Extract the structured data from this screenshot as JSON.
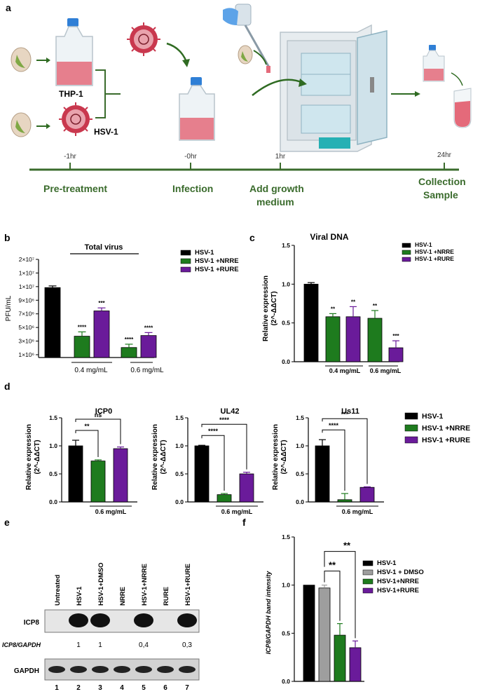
{
  "colors": {
    "hsv": "#000000",
    "nrre": "#1e7b1e",
    "rure": "#6a1b9a",
    "dmso": "#9e9e9e",
    "timeline": "#3a6b2c",
    "medium": "#e46a7a"
  },
  "panel_a": {
    "letter": "a",
    "cell_label": "THP-1",
    "virus_label": "HSV-1",
    "times": [
      "-1hr",
      "-0hr",
      "1hr",
      "24hr"
    ],
    "steps": [
      "Pre-treatment",
      "Infection",
      "Add growth",
      "medium",
      "Collection",
      "Sample"
    ],
    "icons": [
      "pistachio-icon",
      "flask-icon",
      "virus-icon",
      "pipette-icon",
      "incubator-icon",
      "tube-icon"
    ]
  },
  "panel_b": {
    "letter": "b",
    "header": "Total virus",
    "ylabel": "PFU/mL",
    "yticks": [
      "2×10⁷",
      "1×10⁷",
      "1×10⁷",
      "9×10⁶",
      "7×10⁶",
      "5×10⁶",
      "3×10⁶",
      "1×10⁶"
    ],
    "groups": [
      "0.4 mg/mL",
      "0.6 mg/mL"
    ],
    "legend": [
      "HSV-1",
      "HSV-1 +NRRE",
      "HSV-1 +RURE"
    ],
    "stars": [
      "****",
      "***",
      "****",
      "****"
    ]
  },
  "panel_c": {
    "letter": "c",
    "title": "Viral DNA",
    "ylabel1": "Relative expression",
    "ylabel2": "(2^-ΔΔCT)",
    "yticks": [
      "0.0",
      "0.5",
      "1.0",
      "1.5"
    ],
    "groups": [
      "0.4 mg/mL",
      "0.6 mg/mL"
    ],
    "legend": [
      "HSV-1",
      "HSV-1 +NRRE",
      "HSV-1 +RURE"
    ],
    "stars": [
      "**",
      "**",
      "**",
      "***"
    ]
  },
  "panel_d": {
    "letter": "d",
    "ylabel1": "Relative expression",
    "ylabel2": "(2^-ΔΔCT)",
    "yticks": [
      "0.0",
      "0.5",
      "1.0",
      "1.5"
    ],
    "group": "0.6 mg/mL",
    "legend": [
      "HSV-1",
      "HSV-1 +NRRE",
      "HSV-1 +RURE"
    ],
    "sub1": {
      "title": "ICP0",
      "sig_a": "**",
      "sig_b": "ns"
    },
    "sub2": {
      "title": "UL42",
      "sig_a": "****",
      "sig_b": "****"
    },
    "sub3": {
      "title": "Us11",
      "sig_a": "****",
      "sig_b": "***"
    }
  },
  "panel_e": {
    "letter": "e",
    "lane_labels": [
      "Untreated",
      "HSV-1",
      "HSV-1+DMSO",
      "NRRE",
      "HSV-1+NRRE",
      "RURE",
      "HSV-1+RURE"
    ],
    "row_icp8": "ICP8",
    "row_ratio": "ICP8/GAPDH",
    "row_gapdh": "GAPDH",
    "ratios": [
      "1",
      "1",
      "0,4",
      "0,3"
    ],
    "lane_numbers": [
      "1",
      "2",
      "3",
      "4",
      "5",
      "6",
      "7"
    ]
  },
  "panel_f": {
    "letter": "f",
    "ylabel": "ICP8/GAPDH band intensity",
    "yticks": [
      "0.0",
      "0.5",
      "1.0",
      "1.5"
    ],
    "legend": [
      "HSV-1",
      "HSV-1 + DMSO",
      "HSV-1+NRRE",
      "HSV-1+RURE"
    ],
    "stars": [
      "**",
      "**"
    ]
  },
  "chart_data": [
    {
      "panel": "b",
      "type": "bar",
      "ylabel": "PFU/mL",
      "title": "Total virus",
      "categories": [
        "HSV-1",
        "0.4 mg/mL NRRE",
        "0.4 mg/mL RURE",
        "0.6 mg/mL NRRE",
        "0.6 mg/mL RURE"
      ],
      "values": [
        10500000,
        3200000,
        7000000,
        1500000,
        3300000
      ],
      "errors": [
        250000,
        650000,
        450000,
        500000,
        450000
      ],
      "colors": [
        "#000000",
        "#1e7b1e",
        "#6a1b9a",
        "#1e7b1e",
        "#6a1b9a"
      ],
      "ylim": [
        0,
        20000000
      ]
    },
    {
      "panel": "c",
      "type": "bar",
      "title": "Viral DNA",
      "ylabel": "Relative expression",
      "categories": [
        "HSV-1",
        "0.4 mg/mL NRRE",
        "0.4 mg/mL RURE",
        "0.6 mg/mL NRRE",
        "0.6 mg/mL RURE"
      ],
      "values": [
        1.0,
        0.58,
        0.58,
        0.56,
        0.18
      ],
      "errors": [
        0.02,
        0.04,
        0.13,
        0.1,
        0.09
      ],
      "colors": [
        "#000000",
        "#1e7b1e",
        "#6a1b9a",
        "#1e7b1e",
        "#6a1b9a"
      ],
      "ylim": [
        0,
        1.5
      ]
    },
    {
      "panel": "d-ICP0",
      "type": "bar",
      "title": "ICP0",
      "ylabel": "Relative expression",
      "categories": [
        "HSV-1",
        "HSV-1 +NRRE",
        "HSV-1 +RURE"
      ],
      "values": [
        1.0,
        0.73,
        0.95
      ],
      "errors": [
        0.1,
        0.02,
        0.03
      ],
      "colors": [
        "#000000",
        "#1e7b1e",
        "#6a1b9a"
      ],
      "ylim": [
        0,
        1.5
      ]
    },
    {
      "panel": "d-UL42",
      "type": "bar",
      "title": "UL42",
      "ylabel": "Relative expression",
      "categories": [
        "HSV-1",
        "HSV-1 +NRRE",
        "HSV-1 +RURE"
      ],
      "values": [
        1.0,
        0.13,
        0.5
      ],
      "errors": [
        0.01,
        0.02,
        0.03
      ],
      "colors": [
        "#000000",
        "#1e7b1e",
        "#6a1b9a"
      ],
      "ylim": [
        0,
        1.5
      ]
    },
    {
      "panel": "d-Us11",
      "type": "bar",
      "title": "Us11",
      "ylabel": "Relative expression",
      "categories": [
        "HSV-1",
        "HSV-1 +NRRE",
        "HSV-1 +RURE"
      ],
      "values": [
        1.0,
        0.04,
        0.26
      ],
      "errors": [
        0.11,
        0.11,
        0.01
      ],
      "colors": [
        "#000000",
        "#1e7b1e",
        "#6a1b9a"
      ],
      "ylim": [
        0,
        1.5
      ]
    },
    {
      "panel": "f",
      "type": "bar",
      "ylabel": "ICP8/GAPDH band intensity",
      "categories": [
        "HSV-1",
        "HSV-1 + DMSO",
        "HSV-1+NRRE",
        "HSV-1+RURE"
      ],
      "values": [
        1.0,
        0.97,
        0.48,
        0.35
      ],
      "errors": [
        0.0,
        0.03,
        0.12,
        0.07
      ],
      "colors": [
        "#000000",
        "#9e9e9e",
        "#1e7b1e",
        "#6a1b9a"
      ],
      "ylim": [
        0,
        1.5
      ]
    }
  ]
}
